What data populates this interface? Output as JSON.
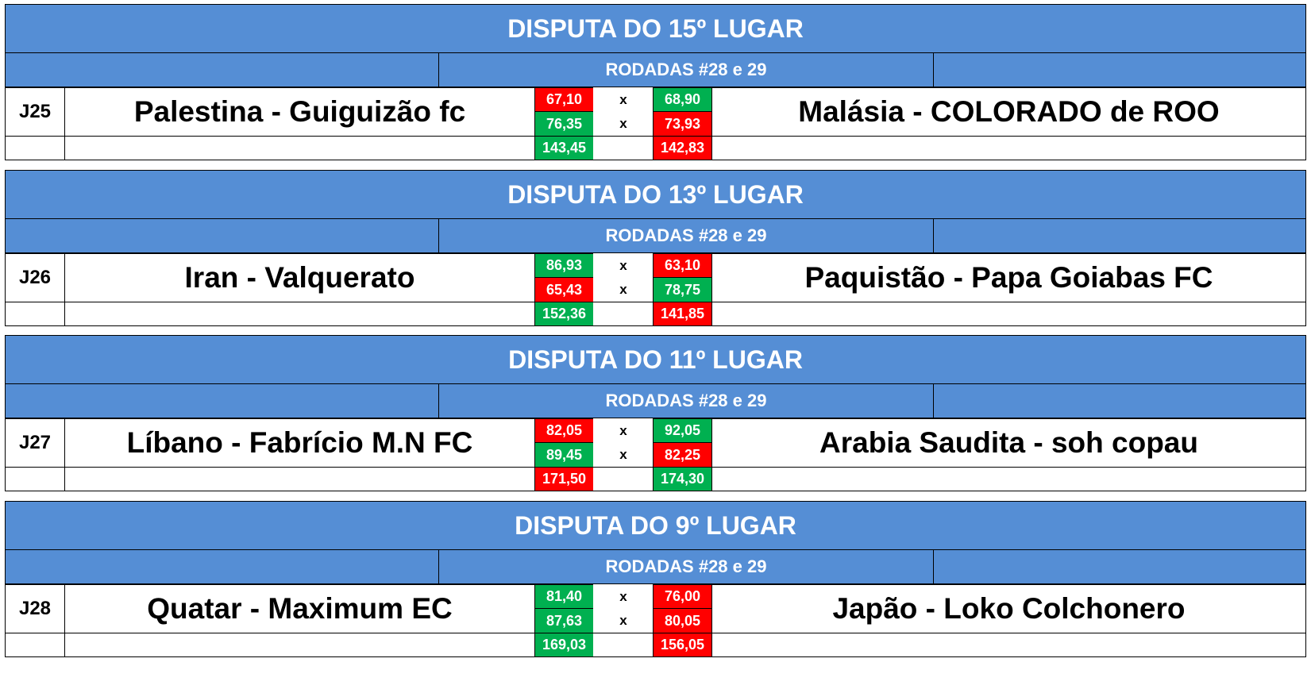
{
  "colors": {
    "header": "#558ed5",
    "win": "#00b050",
    "loss": "#ff0000"
  },
  "matches": [
    {
      "title": "DISPUTA DO 15º LUGAR",
      "subtitle": "RODADAS #28 e 29",
      "game": "J25",
      "home": "Palestina - Guiguizão fc",
      "away": "Malásia - COLORADO de ROO",
      "sep1": "x",
      "sep2": "x",
      "rows": [
        {
          "home": "67,10",
          "away": "68,90",
          "home_color": "red",
          "away_color": "green"
        },
        {
          "home": "76,35",
          "away": "73,93",
          "home_color": "green",
          "away_color": "red"
        }
      ],
      "total": {
        "home": "143,45",
        "away": "142,83",
        "home_color": "green",
        "away_color": "red"
      }
    },
    {
      "title": "DISPUTA DO 13º LUGAR",
      "subtitle": "RODADAS #28 e 29",
      "game": "J26",
      "home": "Iran - Valquerato",
      "away": "Paquistão - Papa Goiabas FC",
      "sep1": "x",
      "sep2": "x",
      "rows": [
        {
          "home": "86,93",
          "away": "63,10",
          "home_color": "green",
          "away_color": "red"
        },
        {
          "home": "65,43",
          "away": "78,75",
          "home_color": "red",
          "away_color": "green"
        }
      ],
      "total": {
        "home": "152,36",
        "away": "141,85",
        "home_color": "green",
        "away_color": "red"
      }
    },
    {
      "title": "DISPUTA DO 11º LUGAR",
      "subtitle": "RODADAS #28 e 29",
      "game": "J27",
      "home": "Líbano - Fabrício M.N FC",
      "away": "Arabia Saudita - soh copau",
      "sep1": "x",
      "sep2": "x",
      "rows": [
        {
          "home": "82,05",
          "away": "92,05",
          "home_color": "red",
          "away_color": "green"
        },
        {
          "home": "89,45",
          "away": "82,25",
          "home_color": "green",
          "away_color": "red"
        }
      ],
      "total": {
        "home": "171,50",
        "away": "174,30",
        "home_color": "red",
        "away_color": "green"
      }
    },
    {
      "title": "DISPUTA DO 9º LUGAR",
      "subtitle": "RODADAS #28 e 29",
      "game": "J28",
      "home": "Quatar - Maximum EC",
      "away": "Japão - Loko Colchonero",
      "sep1": "x",
      "sep2": "x",
      "rows": [
        {
          "home": "81,40",
          "away": "76,00",
          "home_color": "green",
          "away_color": "red"
        },
        {
          "home": "87,63",
          "away": "80,05",
          "home_color": "green",
          "away_color": "red"
        }
      ],
      "total": {
        "home": "169,03",
        "away": "156,05",
        "home_color": "green",
        "away_color": "red"
      }
    }
  ]
}
